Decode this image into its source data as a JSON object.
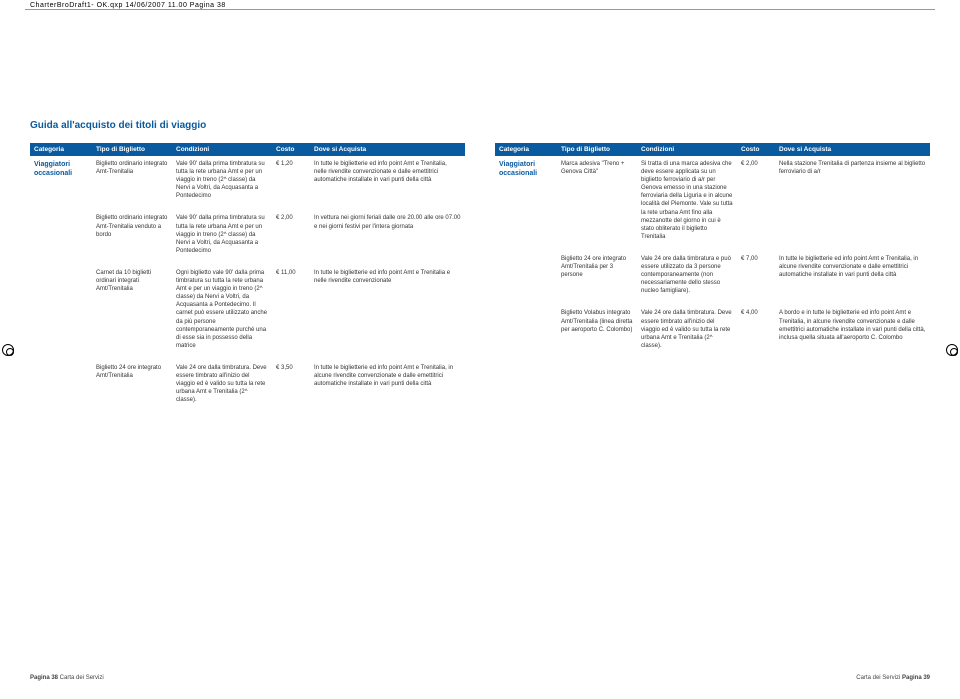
{
  "crop_header": "CharterBroDraft1- OK.qxp  14/06/2007  11.00  Pagina 38",
  "title": "Guida all'acquisto dei titoli di viaggio",
  "headers": {
    "categoria": "Categoria",
    "tipo": "Tipo di Biglietto",
    "condizioni": "Condizioni",
    "costo": "Costo",
    "dove": "Dove si Acquista"
  },
  "category_label": "Viaggiatori occasionali",
  "left_rows": [
    {
      "tipo": "Biglietto ordinario integrato Amt-Trenitalia",
      "condizioni": "Vale 90' dalla prima timbratura su tutta la rete urbana Amt e per un viaggio in treno (2^ classe) da Nervi a Voltri, da Acquasanta a Pontedecimo",
      "costo": "€ 1,20",
      "dove": "In tutte le biglietterie ed info point Amt e Trenitalia, nelle rivendite convenzionate e dalle emettitrici automatiche installate in vari punti della città"
    },
    {
      "tipo": "Biglietto ordinario integrato Amt-Trenitalia venduto a bordo",
      "condizioni": "Vale 90' dalla prima timbratura su tutta la rete urbana Amt e per un viaggio in treno (2^ classe) da Nervi a Voltri, da Acquasanta a Pontedecimo",
      "costo": "€ 2,00",
      "dove": "In vettura nei giorni feriali dalle ore 20.00 alle ore 07.00 e nei giorni festivi per l'intera giornata"
    },
    {
      "tipo": "Carnet da 10 biglietti ordinari integrati Amt/Trenitalia",
      "condizioni": "Ogni biglietto vale 90' dalla prima timbratura su tutta la rete urbana Amt e per un viaggio in treno (2^ classe) da Nervi a Voltri, da Acquasanta a Pontedecimo. Il carnet può essere utilizzato anche da più persone contemporaneamente purché una di esse sia in possesso della matrice",
      "costo": "€ 11,00",
      "dove": "In tutte le biglietterie ed info point Amt e Trenitalia e nelle rivendite convenzionate"
    },
    {
      "tipo": "Biglietto 24 ore integrato Amt/Trenitalia",
      "condizioni": "Vale 24 ore dalla timbratura. Deve essere timbrato all'inizio del viaggio ed è valido su tutta la rete urbana Amt e Trenitalia (2^ classe).",
      "costo": "€ 3,50",
      "dove": "In tutte le biglietterie ed info point Amt e Trenitalia, in alcune rivendite convenzionate e dalle emettitrici automatiche installate in vari punti della città"
    }
  ],
  "right_rows": [
    {
      "tipo": "Marca adesiva \"Treno + Genova Città\"",
      "condizioni": "Si tratta di una marca adesiva che deve essere applicata su un biglietto ferroviario di a/r per Genova emesso in una stazione ferroviaria della Liguria e in alcune località del Piemonte. Vale su tutta la rete urbana Amt fino alla mezzanotte del giorno in cui è stato obliterato il biglietto Trenitalia",
      "costo": "€ 2,00",
      "dove": "Nella stazione Trenitalia di partenza insieme al biglietto ferroviario di a/r"
    },
    {
      "tipo": "Biglietto 24 ore integrato Amt/Trenitalia per 3 persone",
      "condizioni": "Vale 24 ore dalla timbratura e può essere utilizzato da 3 persone contemporaneamente (non necessariamente dello stesso nucleo famigliare).",
      "costo": "€ 7,00",
      "dove": "In tutte le biglietterie ed info point Amt e Trenitalia, in alcune rivendite convenzionate e dalle emettitrici automatiche installate in vari punti della città"
    },
    {
      "tipo": "Biglietto Volabus integrato Amt/Trenitalia (linea diretta per aeroporto C. Colombo)",
      "condizioni": "Vale 24 ore dalla timbratura. Deve essere timbrato all'inizio del viaggio ed è valido su tutta la rete urbana Amt e Trenitalia (2^ classe).",
      "costo": "€ 4,00",
      "dove": "A bordo e in tutte le biglietterie ed info point Amt e Trenitalia, in alcune rivendite convenzionate e dalle emettitrici automatiche installate in vari punti della città, inclusa quella situata all'aeroporto C. Colombo"
    }
  ],
  "footer_left_bold": "Pagina 38",
  "footer_left_rest": " Carta dei Servizi",
  "footer_right_rest": "Carta dei Servizi ",
  "footer_right_bold": "Pagina 39",
  "colors": {
    "brand": "#0a5aa0",
    "text": "#333333",
    "bg": "#ffffff"
  }
}
